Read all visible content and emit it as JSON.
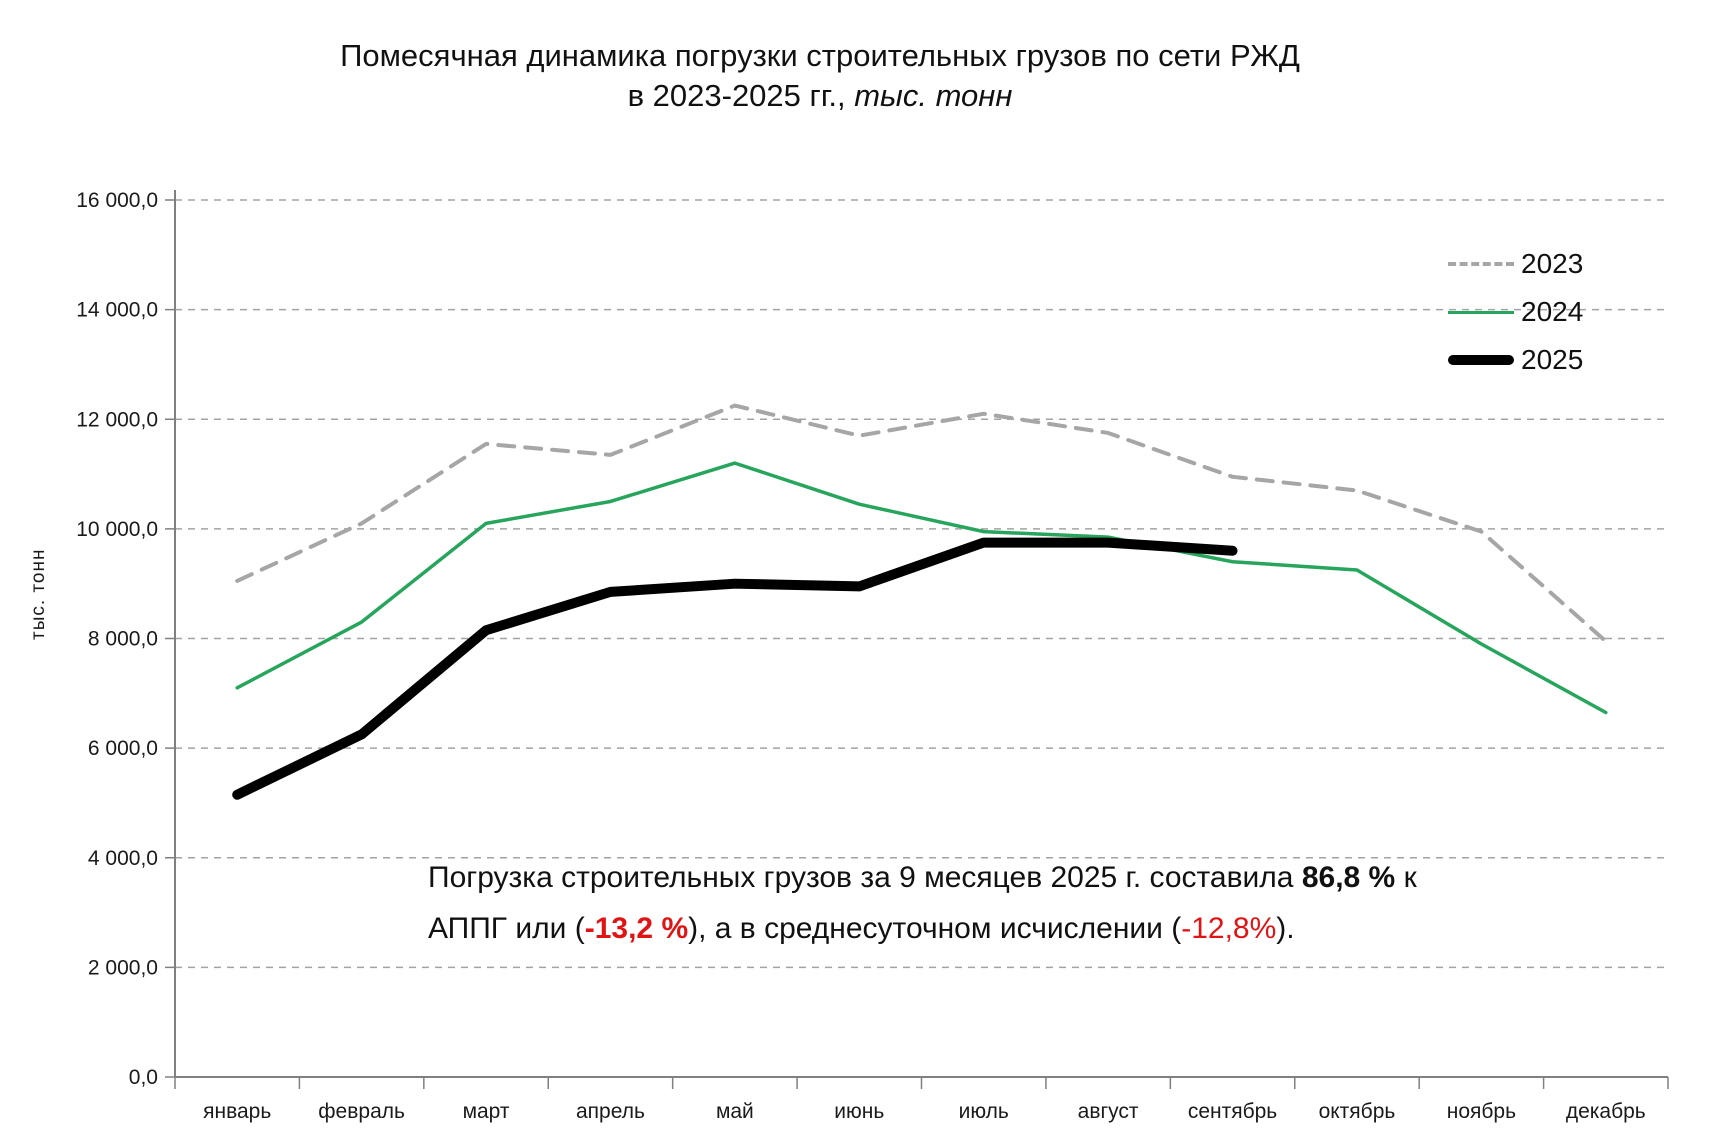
{
  "title": {
    "line1": "Помесячная динамика  погрузки строительных грузов по сети РЖД",
    "line2_prefix": "в 2023-2025 гг., ",
    "line2_italic": "тыс. тонн"
  },
  "y_axis_title": "тыс. тонн",
  "note": {
    "line1_a": "Погрузка строительных грузов за 9 месяцев  2025 г. составила ",
    "line1_b": "86,8 %",
    "line1_c": " к",
    "line2_a": "АППГ или (",
    "line2_b": "-13,2 %",
    "line2_c": "),  а в среднесуточном исчислении (",
    "line2_d": "-12,8%",
    "line2_e": ")."
  },
  "chart_data": {
    "type": "line",
    "title": "Помесячная динамика погрузки строительных грузов по сети РЖД в 2023-2025 гг., тыс. тонн",
    "xlabel": "",
    "ylabel": "тыс. тонн",
    "ylim": [
      0,
      16000
    ],
    "grid": "horizontal-dashed",
    "legend_position": "top-right-inside",
    "categories": [
      "январь",
      "февраль",
      "март",
      "апрель",
      "май",
      "июнь",
      "июль",
      "август",
      "сентябрь",
      "октябрь",
      "ноябрь",
      "декабрь"
    ],
    "y_ticks": [
      {
        "value": 0,
        "label": "0,0"
      },
      {
        "value": 2000,
        "label": "2 000,0"
      },
      {
        "value": 4000,
        "label": "4 000,0"
      },
      {
        "value": 6000,
        "label": "6 000,0"
      },
      {
        "value": 8000,
        "label": "8 000,0"
      },
      {
        "value": 10000,
        "label": "10 000,0"
      },
      {
        "value": 12000,
        "label": "12 000,0"
      },
      {
        "value": 14000,
        "label": "14 000,0"
      },
      {
        "value": 16000,
        "label": "16 000,0"
      }
    ],
    "series": [
      {
        "name": "2023",
        "color": "#a6a6a6",
        "style": "dashed",
        "width": 4,
        "values": [
          9050,
          10100,
          11550,
          11350,
          12250,
          11700,
          12100,
          11750,
          10950,
          10700,
          9950,
          7950
        ]
      },
      {
        "name": "2024",
        "color": "#27a55c",
        "style": "solid",
        "width": 3.5,
        "values": [
          7100,
          8300,
          10100,
          10500,
          11200,
          10450,
          9950,
          9850,
          9400,
          9250,
          7900,
          6650
        ]
      },
      {
        "name": "2025",
        "color": "#000000",
        "style": "solid",
        "width": 10,
        "values": [
          5150,
          6250,
          8150,
          8850,
          9000,
          8950,
          9750,
          9750,
          9600
        ]
      }
    ]
  }
}
